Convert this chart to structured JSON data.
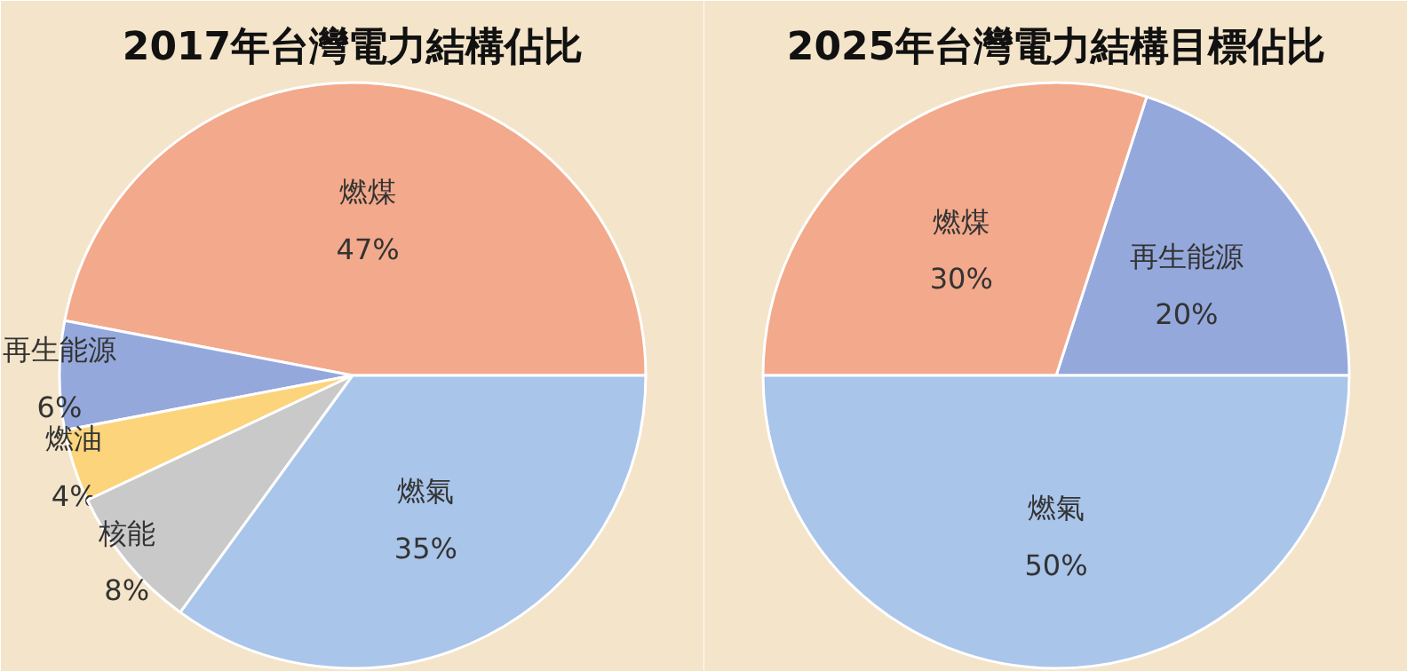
{
  "chart_data": [
    {
      "type": "pie",
      "title": "2017年台灣電力結構佔比",
      "categories": [
        "燃煤",
        "再生能源",
        "燃油",
        "核能",
        "燃氣"
      ],
      "values": [
        47,
        6,
        4,
        8,
        35
      ],
      "value_labels": [
        "47%",
        "6%",
        "4%",
        "8%",
        "35%"
      ],
      "colors": [
        "#f3a98b",
        "#94a8dc",
        "#fcd47c",
        "#c9c9c9",
        "#a9c5ea"
      ]
    },
    {
      "type": "pie",
      "title": "2025年台灣電力結構目標佔比",
      "categories": [
        "再生能源",
        "燃煤",
        "燃氣"
      ],
      "values": [
        20,
        30,
        50
      ],
      "value_labels": [
        "20%",
        "30%",
        "50%"
      ],
      "colors": [
        "#94a8dc",
        "#f3a98b",
        "#a9c5ea"
      ]
    }
  ]
}
